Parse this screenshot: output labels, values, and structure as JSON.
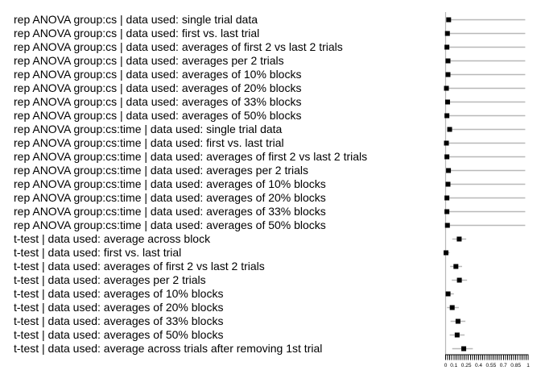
{
  "style": {
    "marker_color": "#000000",
    "guide_line_color": "#b8b8b8",
    "axis_color": "#000000",
    "text_color": "#000000",
    "background": "#ffffff"
  },
  "chart_data": {
    "type": "scatter",
    "subtype": "horizontal-dot-plot-with-ranges",
    "title": "",
    "xlabel": "",
    "ylabel": "",
    "xlim": [
      0,
      1
    ],
    "grid": "per-row horizontal guide lines",
    "legend": "none",
    "x_ticks_minor_step": 0.025,
    "x_tick_labels": [
      {
        "value": 0,
        "label": "0"
      },
      {
        "value": 0.1,
        "label": "0.1"
      },
      {
        "value": 0.25,
        "label": "0.25"
      },
      {
        "value": 0.4,
        "label": "0.4"
      },
      {
        "value": 0.55,
        "label": "0.55"
      },
      {
        "value": 0.7,
        "label": "0.7"
      },
      {
        "value": 0.85,
        "label": "0.85"
      },
      {
        "value": 1,
        "label": "1"
      }
    ],
    "rows": [
      {
        "label": "rep ANOVA group:cs | data used: single trial data",
        "value": 0.037,
        "lo": 0.037,
        "hi": 0.965
      },
      {
        "label": "rep ANOVA group:cs | data used: first vs. last trial",
        "value": 0.022,
        "lo": 0.022,
        "hi": 0.965
      },
      {
        "label": "rep ANOVA group:cs | data used: averages of first 2 vs last 2 trials",
        "value": 0.016,
        "lo": 0.016,
        "hi": 0.965
      },
      {
        "label": "rep ANOVA group:cs | data used: averages per 2 trials",
        "value": 0.029,
        "lo": 0.029,
        "hi": 0.965
      },
      {
        "label": "rep ANOVA group:cs | data used: averages of 10% blocks",
        "value": 0.029,
        "lo": 0.029,
        "hi": 0.965
      },
      {
        "label": "rep ANOVA group:cs | data used: averages of 20% blocks",
        "value": 0.01,
        "lo": 0.01,
        "hi": 0.965
      },
      {
        "label": "rep ANOVA group:cs | data used: averages of 33% blocks",
        "value": 0.024,
        "lo": 0.024,
        "hi": 0.965
      },
      {
        "label": "rep ANOVA group:cs | data used: averages of 50% blocks",
        "value": 0.016,
        "lo": 0.016,
        "hi": 0.965
      },
      {
        "label": "rep ANOVA group:cs:time | data used: single trial data",
        "value": 0.049,
        "lo": 0.049,
        "hi": 0.965
      },
      {
        "label": "rep ANOVA group:cs:time | data used: first vs. last trial",
        "value": 0.01,
        "lo": 0.01,
        "hi": 0.965
      },
      {
        "label": "rep ANOVA group:cs:time | data used: averages of first 2 vs last 2 trials",
        "value": 0.016,
        "lo": 0.016,
        "hi": 0.965
      },
      {
        "label": "rep ANOVA group:cs:time | data used: averages per 2 trials",
        "value": 0.035,
        "lo": 0.035,
        "hi": 0.965
      },
      {
        "label": "rep ANOVA group:cs:time | data used: averages of 10% blocks",
        "value": 0.029,
        "lo": 0.029,
        "hi": 0.965
      },
      {
        "label": "rep ANOVA group:cs:time | data used: averages of 20% blocks",
        "value": 0.016,
        "lo": 0.016,
        "hi": 0.965
      },
      {
        "label": "rep ANOVA group:cs:time | data used: averages of 33% blocks",
        "value": 0.016,
        "lo": 0.016,
        "hi": 0.965
      },
      {
        "label": "rep ANOVA group:cs:time | data used: averages of 50% blocks",
        "value": 0.022,
        "lo": 0.022,
        "hi": 0.965
      },
      {
        "label": "t-test | data used: average across block",
        "value": 0.165,
        "lo": 0.08,
        "hi": 0.25
      },
      {
        "label": "t-test | data used: first vs. last trial",
        "value": 0.005,
        "lo": 0.0,
        "hi": 0.05
      },
      {
        "label": "t-test | data used: averages of first 2 vs last 2 trials",
        "value": 0.125,
        "lo": 0.055,
        "hi": 0.2
      },
      {
        "label": "t-test | data used: averages per 2 trials",
        "value": 0.167,
        "lo": 0.075,
        "hi": 0.26
      },
      {
        "label": "t-test | data used: averages of 10% blocks",
        "value": 0.03,
        "lo": 0.0,
        "hi": 0.1
      },
      {
        "label": "t-test | data used: averages of 20% blocks",
        "value": 0.08,
        "lo": 0.017,
        "hi": 0.16
      },
      {
        "label": "t-test | data used: averages of 33% blocks",
        "value": 0.15,
        "lo": 0.06,
        "hi": 0.24
      },
      {
        "label": "t-test | data used: averages of 50% blocks",
        "value": 0.14,
        "lo": 0.05,
        "hi": 0.23
      },
      {
        "label": "t-test | data used: average across trials after removing 1st trial",
        "value": 0.22,
        "lo": 0.08,
        "hi": 0.33
      }
    ]
  }
}
